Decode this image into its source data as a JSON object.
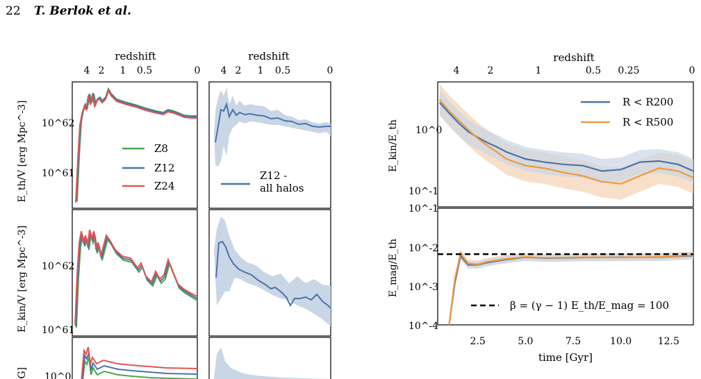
{
  "header": {
    "page_number": "22",
    "authors": "T. Berlok et al."
  },
  "colors": {
    "z8": "#4ca64c",
    "z12": "#4a73a8",
    "z24": "#e05454",
    "r500": "#f0983c",
    "band_blue": "#c9d6e6",
    "band_orange": "#f5d1b2"
  },
  "left_figure": {
    "top_axis_label": "redshift",
    "top_ticks": [
      "4",
      "2",
      "1",
      "0.5",
      "0"
    ],
    "panels": [
      {
        "ylabel": "E_th/V [erg Mpc^-3]",
        "yticks": [
          "10^62",
          "10^61"
        ]
      },
      {
        "ylabel": "E_kin/V [erg Mpc^-3]",
        "yticks": [
          "10^62",
          "10^61"
        ]
      },
      {
        "ylabel": "[G]",
        "yticks": [
          "10^0"
        ]
      }
    ],
    "legend_left": [
      "Z8",
      "Z12",
      "Z24"
    ],
    "legend_right": [
      "Z12 -",
      "all halos"
    ]
  },
  "chart_data": [
    {
      "type": "line",
      "title": "",
      "top_axis_label": "redshift",
      "top_ticks": [
        "4",
        "2",
        "1",
        "0.5",
        "0.25",
        "0"
      ],
      "ylabel": "E_kin/E_th",
      "yscale": "log",
      "ylim": [
        0.06,
        4
      ],
      "yticks": [
        "10^0",
        "10^-1"
      ],
      "legend_position": "top-right",
      "x": [
        0.5,
        1.0,
        1.5,
        2.0,
        2.5,
        3.0,
        3.5,
        4.0,
        5.0,
        6.0,
        7.0,
        8.0,
        9.0,
        10.0,
        11.0,
        12.0,
        13.0,
        13.8
      ],
      "series": [
        {
          "name": "R < R200",
          "values": [
            2.0,
            1.4,
            1.0,
            0.75,
            0.62,
            0.52,
            0.45,
            0.38,
            0.3,
            0.27,
            0.25,
            0.24,
            0.2,
            0.21,
            0.27,
            0.28,
            0.25,
            0.2
          ]
        },
        {
          "name": "R < R500",
          "values": [
            2.2,
            1.5,
            1.1,
            0.8,
            0.6,
            0.47,
            0.38,
            0.3,
            0.24,
            0.22,
            0.19,
            0.17,
            0.14,
            0.13,
            0.17,
            0.22,
            0.2,
            0.16
          ]
        }
      ]
    },
    {
      "type": "line",
      "title": "",
      "xlabel": "time [Gyr]",
      "xticks": [
        "2.5",
        "5.0",
        "7.5",
        "10.0",
        "12.5"
      ],
      "xlim": [
        0.4,
        13.8
      ],
      "ylabel": "E_mag/E_th",
      "yscale": "log",
      "ylim": [
        0.0001,
        0.1
      ],
      "yticks": [
        "10^-1",
        "10^-2",
        "10^-3",
        "10^-4"
      ],
      "legend_position": "bottom-right",
      "x": [
        1.0,
        1.3,
        1.6,
        1.8,
        2.0,
        2.5,
        3.0,
        4.0,
        5.0,
        6.0,
        8.0,
        10.0,
        12.0,
        13.8
      ],
      "series": [
        {
          "name": "",
          "values": [
            0.0001,
            0.0012,
            0.006,
            0.0045,
            0.0035,
            0.0035,
            0.004,
            0.0048,
            0.0055,
            0.0052,
            0.0054,
            0.0055,
            0.0055,
            0.006
          ]
        },
        {
          "name": "",
          "values": [
            0.0001,
            0.0015,
            0.007,
            0.005,
            0.0038,
            0.0036,
            0.0042,
            0.005,
            0.0056,
            0.0053,
            0.0055,
            0.0054,
            0.0056,
            0.0062
          ]
        }
      ],
      "reference_line": {
        "y": 0.0066,
        "label": "β = (γ − 1) E_th/E_mag = 100"
      }
    }
  ]
}
